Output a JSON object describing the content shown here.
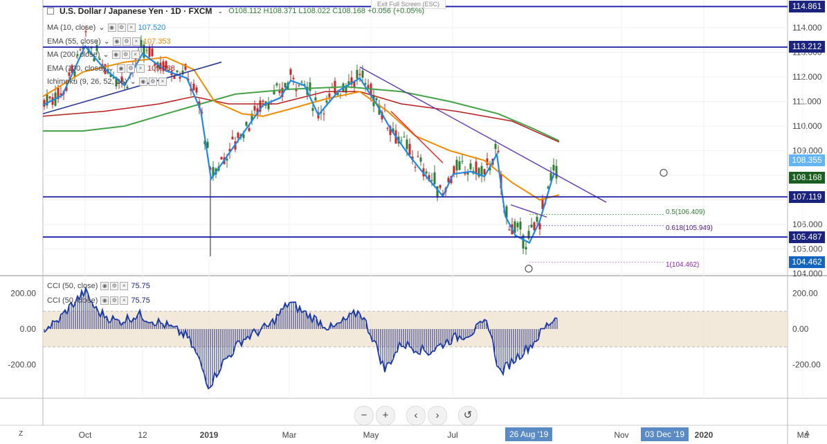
{
  "header": {
    "symbol": "U.S. Dollar / Japanese Yen · 1D · FXCM",
    "ohlc": "O108.112  H108.371  L108.022  C108.168  +0.056 (+0.05%)",
    "exit_fullscreen": "Exit Full Screen (ESC)"
  },
  "indicators": [
    {
      "label": "MA (10, close)",
      "value": "107.520",
      "color": "#1e88e5"
    },
    {
      "label": "EMA (55, close)",
      "value": "107.353",
      "color": "#ef8c00"
    },
    {
      "label": "MA (200, close)",
      "value": "",
      "color": "#43a047"
    },
    {
      "label": "EMA (100, close)",
      "value": "109.488",
      "color": "#b71c1c"
    },
    {
      "label": "Ichimoku (9, 26, 52, 26)",
      "value": "",
      "color": "#555555"
    }
  ],
  "cci_indicators": [
    {
      "label": "CCI (50, close)",
      "value": "75.75"
    },
    {
      "label": "CCI (50, close)",
      "value": "75.75"
    }
  ],
  "price_tags": [
    {
      "value": "114.861",
      "price": 114.861,
      "bg": "#1a237e"
    },
    {
      "value": "113.212",
      "price": 113.212,
      "bg": "#1a237e"
    },
    {
      "value": "108.355",
      "price": 108.355,
      "bg": "#64b5f6"
    },
    {
      "value": "108.168",
      "price": 108.168,
      "bg": "#1b5e20"
    },
    {
      "value": "107.119",
      "price": 107.119,
      "bg": "#1a237e"
    },
    {
      "value": "105.487",
      "price": 105.487,
      "bg": "#1a237e"
    },
    {
      "value": "104.462",
      "price": 104.462,
      "bg": "#1565c0"
    }
  ],
  "fib_labels": [
    {
      "text": "0.5(106.409)",
      "color": "#2e7d32"
    },
    {
      "text": "0.618(105.949)",
      "color": "#4a148c"
    },
    {
      "text": "1(104.462)",
      "color": "#8e24aa"
    }
  ],
  "time_tags": [
    "26 Aug '19",
    "03 Dec '19"
  ],
  "nav": {
    "zoom_out": "−",
    "zoom_in": "+",
    "left": "‹",
    "right": "›",
    "reset": "↺"
  },
  "corner_left": "Z",
  "corner_right": "A",
  "chart_data": [
    {
      "type": "candlestick",
      "title": "U.S. Dollar / Japanese Yen · 1D · FXCM",
      "ylim": [
        104.0,
        115.0
      ],
      "y_ticks": [
        104.0,
        105.0,
        106.0,
        107.0,
        108.0,
        109.0,
        110.0,
        111.0,
        112.0,
        113.0,
        114.0
      ],
      "x_tick_labels": [
        "Oct",
        "12",
        "2019",
        "Mar",
        "May",
        "Jul",
        "Nov",
        "2020",
        "Ma"
      ],
      "series": [
        {
          "name": "MA (10, close)",
          "color": "#1e88e5"
        },
        {
          "name": "EMA (55, close)",
          "color": "#ef8c00"
        },
        {
          "name": "MA (200, close)",
          "color": "#43a047"
        },
        {
          "name": "EMA (100, close)",
          "color": "#b71c1c"
        }
      ],
      "horizontal_levels": [
        114.861,
        113.212,
        107.119,
        105.487
      ],
      "fibonacci": [
        {
          "ratio": 0.5,
          "value": 106.409
        },
        {
          "ratio": 0.618,
          "value": 105.949
        },
        {
          "ratio": 1,
          "value": 104.462
        }
      ],
      "last_close": 108.168
    },
    {
      "type": "line",
      "title": "CCI (50, close)",
      "ylim": [
        -350,
        300
      ],
      "y_ticks": [
        200.0,
        0.0,
        -200.0
      ],
      "band": [
        -100,
        100
      ],
      "last_value": 75.75
    }
  ]
}
